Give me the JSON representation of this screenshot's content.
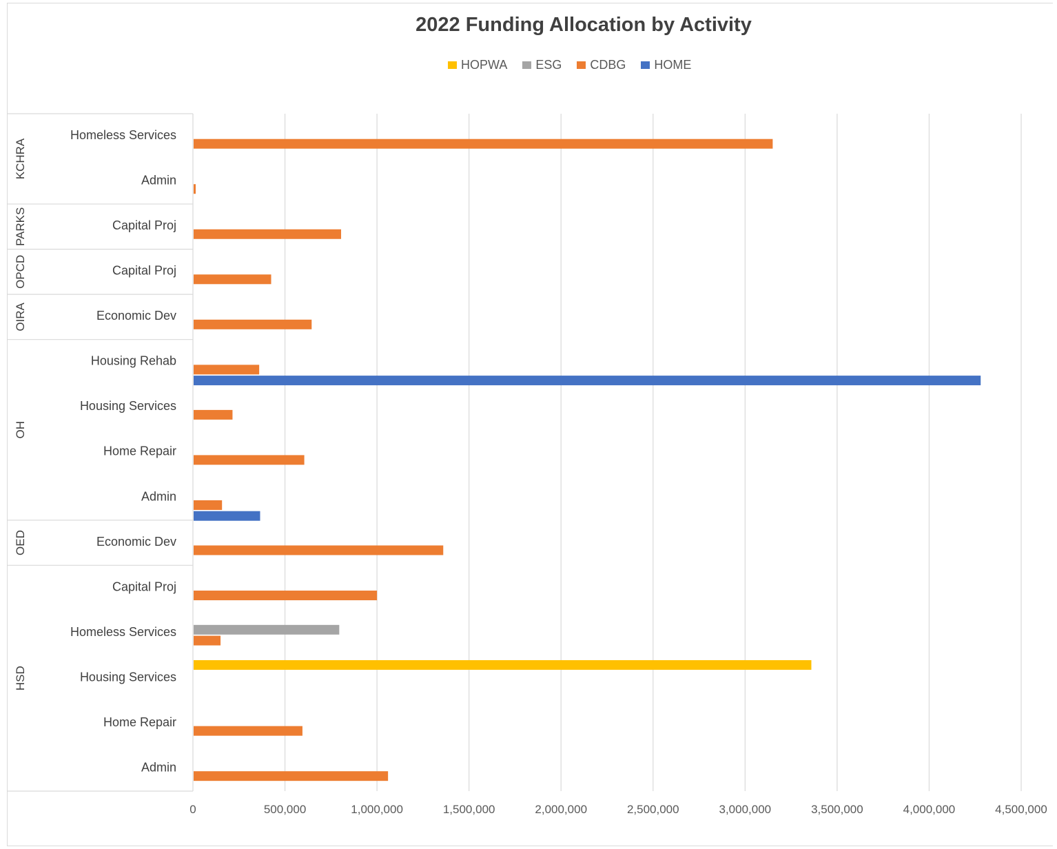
{
  "chart_data": {
    "type": "bar",
    "orientation": "horizontal",
    "title": "2022 Funding Allocation by Activity",
    "xlabel": "",
    "ylabel": "",
    "xlim": [
      0,
      4500000
    ],
    "x_ticks": [
      "0",
      "500,000",
      "1,000,000",
      "1,500,000",
      "2,000,000",
      "2,500,000",
      "3,000,000",
      "3,500,000",
      "4,000,000",
      "4,500,000"
    ],
    "x_tick_values": [
      0,
      500000,
      1000000,
      1500000,
      2000000,
      2500000,
      3000000,
      3500000,
      4000000,
      4500000
    ],
    "grid": "vertical",
    "legend_position": "top",
    "legend": [
      "HOPWA",
      "ESG",
      "CDBG",
      "HOME"
    ],
    "series_colors": {
      "HOPWA": "#ffc000",
      "ESG": "#a5a5a5",
      "CDBG": "#ed7d31",
      "HOME": "#4472c4"
    },
    "groups": [
      {
        "name": "KCHRA",
        "categories": [
          {
            "label": "Homeless Services",
            "values": {
              "CDBG": 3150000
            }
          },
          {
            "label": "Admin",
            "values": {
              "CDBG": 15000
            }
          }
        ]
      },
      {
        "name": "PARKS",
        "categories": [
          {
            "label": "Capital Proj",
            "values": {
              "CDBG": 805000
            }
          }
        ]
      },
      {
        "name": "OPCD",
        "categories": [
          {
            "label": "Capital Proj",
            "values": {
              "CDBG": 425000
            }
          }
        ]
      },
      {
        "name": "OIRA",
        "categories": [
          {
            "label": "Economic Dev",
            "values": {
              "CDBG": 645000
            }
          }
        ]
      },
      {
        "name": "OH",
        "categories": [
          {
            "label": "Housing Rehab",
            "values": {
              "CDBG": 360000,
              "HOME": 4280000
            }
          },
          {
            "label": "Housing Services",
            "values": {
              "CDBG": 215000
            }
          },
          {
            "label": "Home Repair",
            "values": {
              "CDBG": 605000
            }
          },
          {
            "label": "Admin",
            "values": {
              "CDBG": 158000,
              "HOME": 365000
            }
          }
        ]
      },
      {
        "name": "OED",
        "categories": [
          {
            "label": "Economic Dev",
            "values": {
              "CDBG": 1360000
            }
          }
        ]
      },
      {
        "name": "HSD",
        "categories": [
          {
            "label": "Capital Proj",
            "values": {
              "CDBG": 1000000
            }
          },
          {
            "label": "Homeless Services",
            "values": {
              "ESG": 795000,
              "CDBG": 150000
            }
          },
          {
            "label": "Housing Services",
            "values": {
              "HOPWA": 3360000
            }
          },
          {
            "label": "Home Repair",
            "values": {
              "CDBG": 595000
            }
          },
          {
            "label": "Admin",
            "values": {
              "CDBG": 1060000
            }
          }
        ]
      }
    ]
  }
}
